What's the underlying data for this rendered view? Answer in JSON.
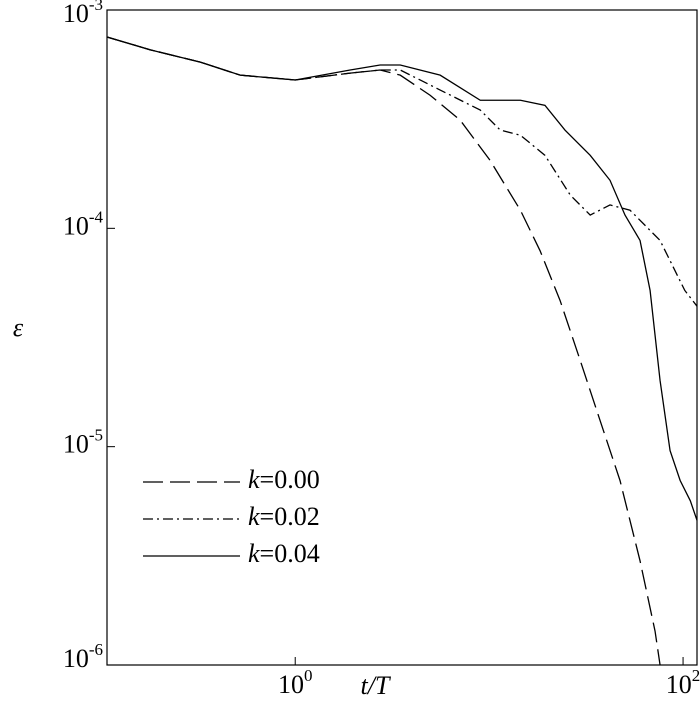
{
  "chart_data": {
    "type": "line",
    "xlabel": "t/T",
    "ylabel": "ε",
    "xscale": "log",
    "yscale": "log",
    "xlim": [
      0.107,
      118
    ],
    "ylim": [
      1e-06,
      0.001
    ],
    "xticks": [
      {
        "value": 1,
        "label": "100"
      },
      {
        "value": 100,
        "label": "102"
      }
    ],
    "yticks": [
      {
        "value": 0.001,
        "label": "10-3"
      },
      {
        "value": 0.0001,
        "label": "10-4"
      },
      {
        "value": 1e-05,
        "label": "10-5"
      },
      {
        "value": 1e-06,
        "label": "10-6"
      }
    ],
    "legend": "lower left",
    "series": [
      {
        "name": "k=0.00",
        "color": "#000000",
        "dash": "dashed",
        "x": [
          0.107,
          0.179,
          0.324,
          0.52,
          1,
          1.92,
          2.74,
          3.48,
          4.96,
          7.09,
          10.1,
          14.5,
          18.3,
          23.2,
          29.5,
          37.3,
          47.3,
          60.0,
          71.7,
          76.1
        ],
        "values": [
          0.000752,
          0.000657,
          0.000577,
          0.000503,
          0.000478,
          0.000514,
          0.000531,
          0.000503,
          0.000407,
          0.000313,
          0.000205,
          0.000121,
          7.9e-05,
          4.68e-05,
          2.48e-05,
          1.32e-05,
          7e-06,
          3e-06,
          1.43e-06,
          1e-06
        ]
      },
      {
        "name": "k=0.02",
        "color": "#000000",
        "dash": "dashdot",
        "x": [
          0.107,
          0.179,
          0.324,
          0.52,
          1,
          1.92,
          2.74,
          3.48,
          5.59,
          9.0,
          11.4,
          14.5,
          19.4,
          26.2,
          33.2,
          42.0,
          53.3,
          76.1,
          102,
          118
        ],
        "values": [
          0.000752,
          0.000657,
          0.000577,
          0.000503,
          0.000478,
          0.000514,
          0.000531,
          0.000531,
          0.00043,
          0.000348,
          0.000282,
          0.000267,
          0.000216,
          0.000142,
          0.000115,
          0.000128,
          0.000121,
          8.8e-05,
          5.2e-05,
          4.4e-05
        ]
      },
      {
        "name": "k=0.04",
        "color": "#000000",
        "dash": "solid",
        "x": [
          0.107,
          0.179,
          0.324,
          0.52,
          1,
          1.92,
          2.74,
          3.48,
          5.59,
          9.0,
          14.5,
          19.4,
          24.6,
          33.2,
          42.0,
          50.2,
          60.0,
          67.6,
          76.1,
          85.7,
          96.6,
          109,
          118
        ],
        "values": [
          0.000752,
          0.000657,
          0.000577,
          0.000503,
          0.000478,
          0.000531,
          0.00056,
          0.00056,
          0.000503,
          0.000386,
          0.000386,
          0.000366,
          0.000282,
          0.000216,
          0.000166,
          0.000115,
          8.8e-05,
          5.2e-05,
          2.01e-05,
          9.6e-06,
          7e-06,
          5.65e-06,
          4.6e-06
        ]
      }
    ]
  }
}
